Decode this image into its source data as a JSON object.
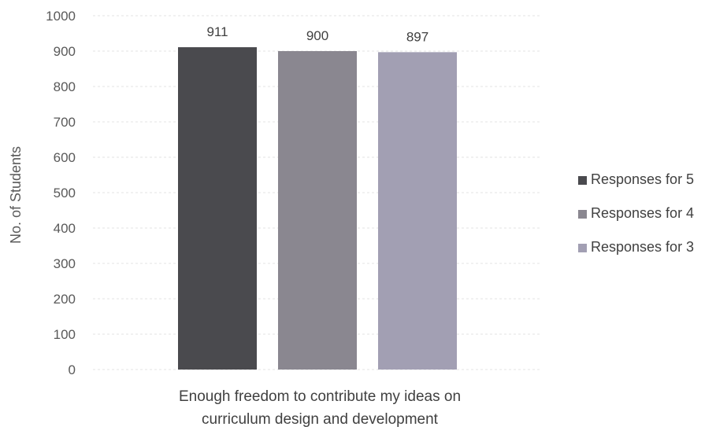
{
  "chart_data": {
    "type": "bar",
    "title": "",
    "categories": [
      "Enough freedom to contribute my ideas on curriculum design and development"
    ],
    "category_label_lines": [
      "Enough freedom to contribute my ideas on",
      "curriculum design and development"
    ],
    "series": [
      {
        "name": "Responses for 5",
        "values": [
          911
        ],
        "color": "#4a4a4e"
      },
      {
        "name": "Responses for 4",
        "values": [
          900
        ],
        "color": "#8a8790"
      },
      {
        "name": "Responses for 3",
        "values": [
          897
        ],
        "color": "#a29fb3"
      }
    ],
    "data_labels": [
      "911",
      "900",
      "897"
    ],
    "ylabel": "No. of Students",
    "xlabel": "",
    "ylim": [
      0,
      1000
    ],
    "y_ticks": [
      0,
      100,
      200,
      300,
      400,
      500,
      600,
      700,
      800,
      900,
      1000
    ],
    "grid": true,
    "legend_position": "right"
  }
}
